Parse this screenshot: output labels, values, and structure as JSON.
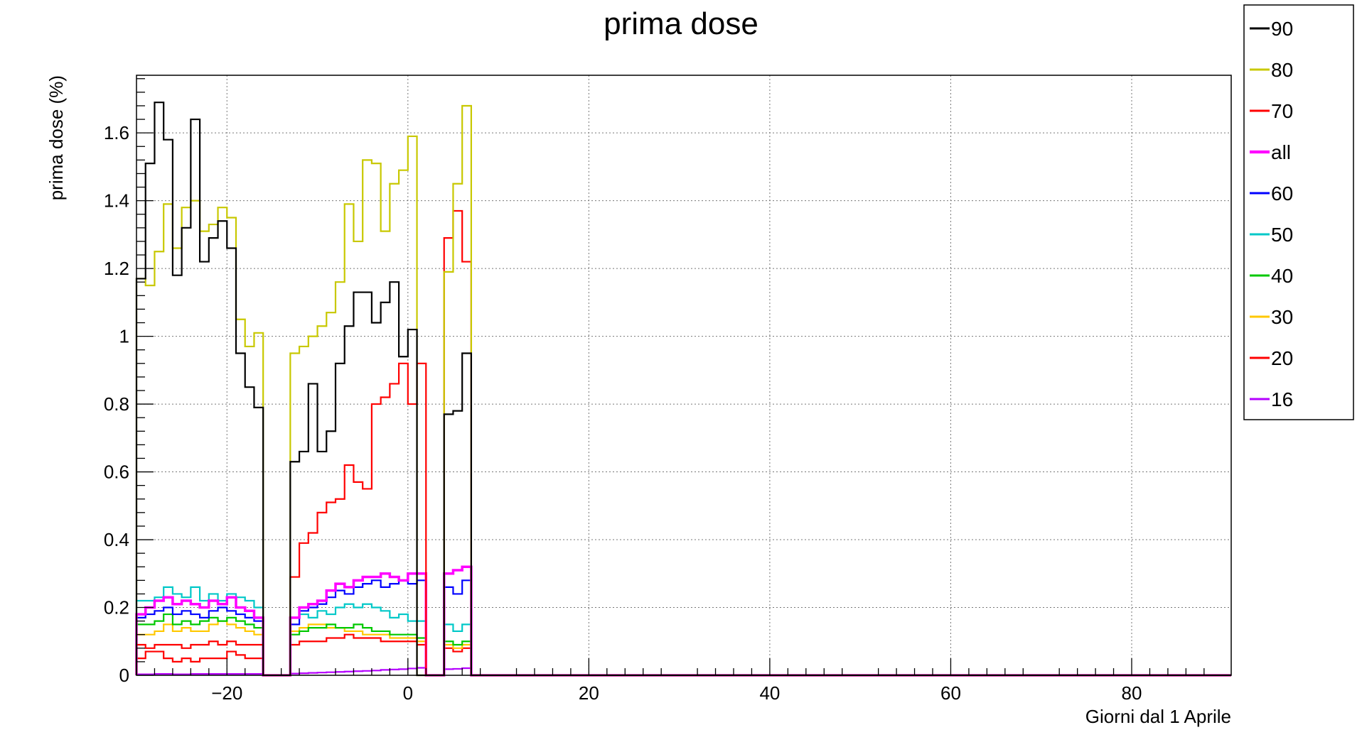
{
  "chart_data": {
    "type": "histogram-step",
    "title": "prima dose",
    "xlabel": "Giorni dal 1 Aprile",
    "ylabel": "prima dose (%)",
    "xlim": [
      -30,
      91
    ],
    "ylim": [
      0,
      1.77
    ],
    "xticks": [
      -20,
      0,
      20,
      40,
      60,
      80
    ],
    "xtick_labels": [
      "−20",
      "0",
      "20",
      "40",
      "60",
      "80"
    ],
    "yticks": [
      0,
      0.2,
      0.4,
      0.6,
      0.8,
      1,
      1.2,
      1.4,
      1.6
    ],
    "ytick_labels": [
      "0",
      "0.2",
      "0.4",
      "0.6",
      "0.8",
      "1",
      "1.2",
      "1.4",
      "1.6"
    ],
    "grid": true,
    "legend_position": "top-right outside",
    "bin_start": -30,
    "bin_width": 1,
    "series": [
      {
        "name": "90",
        "color": "#000000",
        "width": 2.2,
        "values": [
          1.17,
          1.51,
          1.69,
          1.58,
          1.18,
          1.32,
          1.64,
          1.22,
          1.29,
          1.34,
          1.26,
          0.95,
          0.85,
          0.79,
          0,
          0,
          0,
          0.63,
          0.66,
          0.86,
          0.66,
          0.72,
          0.92,
          1.03,
          1.13,
          1.13,
          1.04,
          1.1,
          1.16,
          0.94,
          1.02,
          0,
          0,
          0,
          0.77,
          0.78,
          0.95
        ]
      },
      {
        "name": "80",
        "color": "#c8c800",
        "width": 2.2,
        "values": [
          1.17,
          1.15,
          1.25,
          1.39,
          1.26,
          1.38,
          1.4,
          1.31,
          1.33,
          1.38,
          1.35,
          1.05,
          0.97,
          1.01,
          0,
          0,
          0,
          0.95,
          0.97,
          1.0,
          1.03,
          1.07,
          1.16,
          1.39,
          1.28,
          1.52,
          1.51,
          1.31,
          1.45,
          1.49,
          1.59,
          0,
          0,
          0,
          1.19,
          1.45,
          1.68
        ]
      },
      {
        "name": "70",
        "color": "#ff0000",
        "width": 2.2,
        "values": [
          0.09,
          0.08,
          0.09,
          0.09,
          0.09,
          0.08,
          0.09,
          0.09,
          0.1,
          0.09,
          0.1,
          0.09,
          0.09,
          0.09,
          0,
          0,
          0,
          0.29,
          0.39,
          0.42,
          0.48,
          0.51,
          0.52,
          0.62,
          0.57,
          0.55,
          0.8,
          0.82,
          0.86,
          0.92,
          0.8,
          0.92,
          0,
          0,
          1.29,
          1.37,
          1.22
        ]
      },
      {
        "name": "all",
        "color": "#ff00ff",
        "width": 3.5,
        "values": [
          0.18,
          0.2,
          0.22,
          0.23,
          0.21,
          0.22,
          0.21,
          0.2,
          0.22,
          0.21,
          0.23,
          0.2,
          0.19,
          0.17,
          0,
          0,
          0,
          0.17,
          0.2,
          0.21,
          0.22,
          0.25,
          0.27,
          0.26,
          0.28,
          0.29,
          0.29,
          0.3,
          0.29,
          0.28,
          0.3,
          0.3,
          0,
          0,
          0.3,
          0.31,
          0.32
        ]
      },
      {
        "name": "60",
        "color": "#0000ff",
        "width": 2.2,
        "values": [
          0.17,
          0.18,
          0.19,
          0.2,
          0.18,
          0.19,
          0.18,
          0.17,
          0.19,
          0.2,
          0.19,
          0.18,
          0.17,
          0.16,
          0,
          0,
          0,
          0.15,
          0.19,
          0.2,
          0.21,
          0.23,
          0.25,
          0.24,
          0.26,
          0.27,
          0.28,
          0.26,
          0.27,
          0.28,
          0.27,
          0.28,
          0,
          0,
          0.26,
          0.24,
          0.28
        ]
      },
      {
        "name": "50",
        "color": "#00c8c8",
        "width": 2.2,
        "values": [
          0.22,
          0.22,
          0.23,
          0.26,
          0.24,
          0.23,
          0.26,
          0.22,
          0.24,
          0.22,
          0.24,
          0.23,
          0.22,
          0.2,
          0,
          0,
          0,
          0.17,
          0.18,
          0.17,
          0.19,
          0.18,
          0.2,
          0.21,
          0.2,
          0.21,
          0.2,
          0.19,
          0.17,
          0.18,
          0.16,
          0.16,
          0,
          0,
          0.15,
          0.13,
          0.15
        ]
      },
      {
        "name": "40",
        "color": "#00c800",
        "width": 2.2,
        "values": [
          0.15,
          0.15,
          0.16,
          0.18,
          0.15,
          0.16,
          0.15,
          0.16,
          0.17,
          0.16,
          0.17,
          0.16,
          0.15,
          0.14,
          0,
          0,
          0,
          0.12,
          0.13,
          0.14,
          0.14,
          0.15,
          0.14,
          0.14,
          0.15,
          0.14,
          0.13,
          0.13,
          0.12,
          0.12,
          0.12,
          0.11,
          0,
          0,
          0.1,
          0.09,
          0.1
        ]
      },
      {
        "name": "30",
        "color": "#ffc800",
        "width": 2.2,
        "values": [
          0.12,
          0.12,
          0.13,
          0.15,
          0.13,
          0.14,
          0.13,
          0.13,
          0.15,
          0.16,
          0.15,
          0.14,
          0.13,
          0.12,
          0,
          0,
          0,
          0.13,
          0.14,
          0.15,
          0.15,
          0.14,
          0.14,
          0.13,
          0.13,
          0.12,
          0.12,
          0.12,
          0.11,
          0.11,
          0.11,
          0.1,
          0,
          0,
          0.09,
          0.08,
          0.09
        ]
      },
      {
        "name": "20",
        "color": "#ff0000",
        "width": 2.2,
        "values": [
          0.05,
          0.07,
          0.07,
          0.05,
          0.04,
          0.05,
          0.04,
          0.05,
          0.05,
          0.05,
          0.07,
          0.06,
          0.05,
          0.05,
          0,
          0,
          0,
          0.09,
          0.1,
          0.1,
          0.1,
          0.11,
          0.11,
          0.12,
          0.11,
          0.11,
          0.11,
          0.1,
          0.1,
          0.1,
          0.1,
          0.09,
          0,
          0,
          0.08,
          0.07,
          0.08
        ]
      },
      {
        "name": "16",
        "color": "#b400ff",
        "width": 2.2,
        "values": [
          0.003,
          0.003,
          0.004,
          0.004,
          0.003,
          0.003,
          0.004,
          0.004,
          0.004,
          0.004,
          0.004,
          0.004,
          0.004,
          0.004,
          0,
          0,
          0,
          0.005,
          0.006,
          0.007,
          0.008,
          0.009,
          0.01,
          0.011,
          0.012,
          0.013,
          0.014,
          0.016,
          0.017,
          0.018,
          0.02,
          0.022,
          0,
          0,
          0.018,
          0.019,
          0.021
        ]
      }
    ]
  }
}
